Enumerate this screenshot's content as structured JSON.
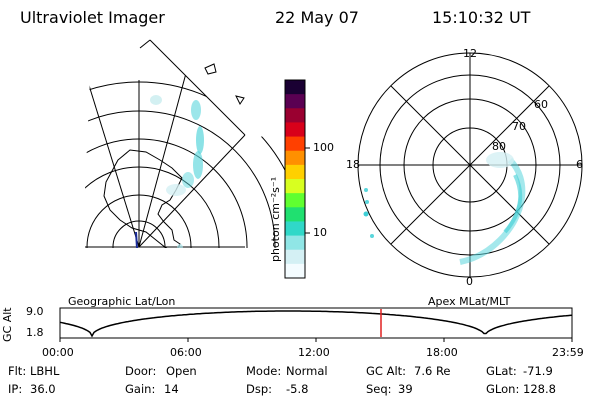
{
  "header": {
    "title": "Ultraviolet Imager",
    "date": "22 May 07",
    "time": "15:10:32 UT"
  },
  "colorbar": {
    "unit_label": "photon cm⁻²s⁻¹",
    "ticks": [
      "100",
      "10"
    ],
    "scale": "log",
    "colors": [
      "#1a0033",
      "#5a0052",
      "#9a0030",
      "#d8001a",
      "#ff4000",
      "#ff9000",
      "#ffd000",
      "#d8ff20",
      "#60ff30",
      "#20e070",
      "#30d8c8",
      "#90e6e6",
      "#d4f0f4",
      "#f4fcff"
    ]
  },
  "left_map": {
    "label": "Geographic Lat/Lon",
    "aurora_color": "#5ad6dc",
    "track_color": "#1b2d9a"
  },
  "right_map": {
    "label": "Apex MLat/MLT",
    "mlt_labels": {
      "top": "12",
      "right": "6",
      "bottom": "0",
      "left": "18"
    },
    "lat_labels": [
      "60",
      "70",
      "80"
    ],
    "aurora_color": "#5ad6dc"
  },
  "altitude_plot": {
    "ylabel": "GC Alt",
    "yticks": [
      "9.0",
      "1.8"
    ],
    "xticks": [
      "00:00",
      "06:00",
      "12:00",
      "18:00",
      "23:59"
    ],
    "current_time_marker_color": "#e02020"
  },
  "footer": {
    "row1": [
      {
        "key": "Flt:",
        "val": "LBHL"
      },
      {
        "key": "Door:",
        "val": "Open"
      },
      {
        "key": "Mode:",
        "val": "Normal"
      },
      {
        "key": "GC Alt:",
        "val": "7.6 Re"
      },
      {
        "key": "GLat:",
        "val": "-71.9"
      }
    ],
    "row2": [
      {
        "key": "IP:",
        "val": "36.0"
      },
      {
        "key": "Gain:",
        "val": "14"
      },
      {
        "key": "Dsp:",
        "val": "-5.8"
      },
      {
        "key": "Seq:",
        "val": "39"
      },
      {
        "key": "GLon:",
        "val": "128.8"
      }
    ]
  }
}
